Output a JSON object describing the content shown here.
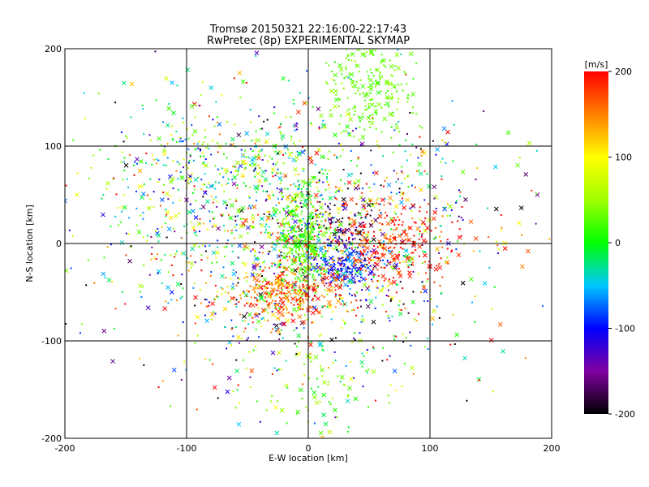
{
  "chart_data": {
    "type": "scatter",
    "title": "Tromsø 20150321 22:16:00-22:17:43",
    "subtitle": "RwPretec (8p) EXPERIMENTAL SKYMAP",
    "xlabel": "E-W location [km]",
    "ylabel": "N-S location [km]",
    "xlim": [
      -200,
      200
    ],
    "ylim": [
      -200,
      200
    ],
    "xticks": [
      "-200",
      "-100",
      "0",
      "100",
      "200"
    ],
    "yticks": [
      "-200",
      "-100",
      "0",
      "100",
      "200"
    ],
    "grid": true,
    "colorbar": {
      "label": "[m/s]",
      "range": [
        -200,
        200
      ],
      "ticks": [
        "200",
        "100",
        "0",
        "-100",
        "-200"
      ],
      "placement": "right"
    },
    "clusters": [
      {
        "x": 0,
        "y": 0,
        "sx": 75,
        "sy": 70,
        "n": 1400,
        "v": 0,
        "sv": 130
      },
      {
        "x": -5,
        "y": 5,
        "sx": 10,
        "sy": 25,
        "n": 320,
        "v": 20,
        "sv": 15
      },
      {
        "x": 30,
        "y": -25,
        "sx": 12,
        "sy": 12,
        "n": 180,
        "v": -95,
        "sv": 30
      },
      {
        "x": -20,
        "y": -52,
        "sx": 25,
        "sy": 14,
        "n": 300,
        "v": 165,
        "sv": 35
      },
      {
        "x": 50,
        "y": 160,
        "sx": 18,
        "sy": 25,
        "n": 220,
        "v": 30,
        "sv": 10
      },
      {
        "x": 30,
        "y": 20,
        "sx": 15,
        "sy": 10,
        "n": 70,
        "v": -170,
        "sv": 25
      },
      {
        "x": 60,
        "y": 0,
        "sx": 35,
        "sy": 25,
        "n": 300,
        "v": 185,
        "sv": 20
      },
      {
        "x": -70,
        "y": 70,
        "sx": 55,
        "sy": 40,
        "n": 450,
        "v": 10,
        "sv": 80
      },
      {
        "x": 10,
        "y": -150,
        "sx": 25,
        "sy": 30,
        "n": 80,
        "v": 35,
        "sv": 30
      }
    ]
  }
}
